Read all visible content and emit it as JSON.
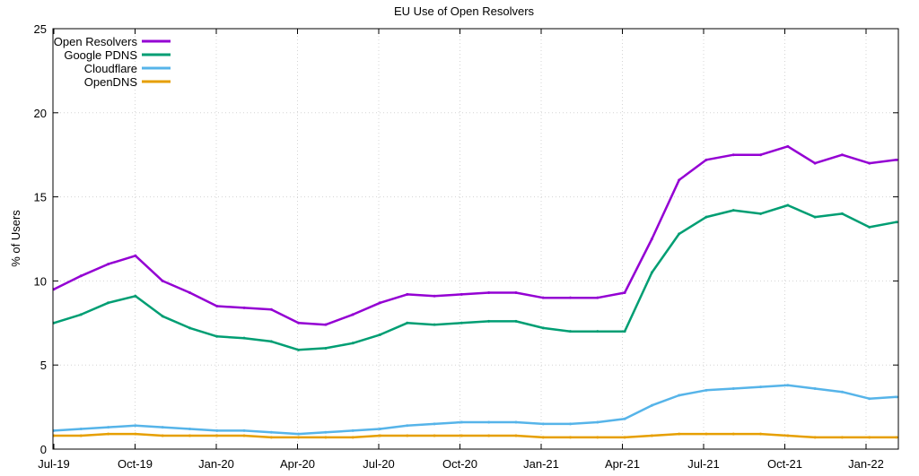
{
  "chart_data": {
    "type": "line",
    "title": "EU Use of Open Resolvers",
    "xlabel": "",
    "ylabel": "% of Users",
    "ylim": [
      0,
      25
    ],
    "yticks": [
      0,
      5,
      10,
      15,
      20,
      25
    ],
    "xticks": [
      "Jul-19",
      "Oct-19",
      "Jan-20",
      "Apr-20",
      "Jul-20",
      "Oct-20",
      "Jan-21",
      "Apr-21",
      "Jul-21",
      "Oct-21",
      "Jan-22"
    ],
    "grid": true,
    "legend_position": "top-left",
    "x": [
      "Jul-19",
      "Aug-19",
      "Sep-19",
      "Oct-19",
      "Nov-19",
      "Dec-19",
      "Jan-20",
      "Feb-20",
      "Mar-20",
      "Apr-20",
      "May-20",
      "Jun-20",
      "Jul-20",
      "Aug-20",
      "Sep-20",
      "Oct-20",
      "Nov-20",
      "Dec-20",
      "Jan-21",
      "Feb-21",
      "Mar-21",
      "Apr-21",
      "May-21",
      "Jun-21",
      "Jul-21",
      "Aug-21",
      "Sep-21",
      "Oct-21",
      "Nov-21",
      "Dec-21",
      "Jan-22",
      "Feb-22"
    ],
    "series": [
      {
        "name": "Open Resolvers",
        "color": "#9400d3",
        "values": [
          9.5,
          10.3,
          11.0,
          11.5,
          10.0,
          9.3,
          8.5,
          8.4,
          8.3,
          7.5,
          7.4,
          8.0,
          8.7,
          9.2,
          9.1,
          9.2,
          9.3,
          9.3,
          9.0,
          9.0,
          9.0,
          9.3,
          12.5,
          16.0,
          17.2,
          17.5,
          17.5,
          18.0,
          17.0,
          17.5,
          17.0,
          17.2
        ]
      },
      {
        "name": "Google PDNS",
        "color": "#009e73",
        "values": [
          7.5,
          8.0,
          8.7,
          9.1,
          7.9,
          7.2,
          6.7,
          6.6,
          6.4,
          5.9,
          6.0,
          6.3,
          6.8,
          7.5,
          7.4,
          7.5,
          7.6,
          7.6,
          7.2,
          7.0,
          7.0,
          7.0,
          10.5,
          12.8,
          13.8,
          14.2,
          14.0,
          14.5,
          13.8,
          14.0,
          13.2,
          13.5
        ]
      },
      {
        "name": "Cloudflare",
        "color": "#56b4e9",
        "values": [
          1.1,
          1.2,
          1.3,
          1.4,
          1.3,
          1.2,
          1.1,
          1.1,
          1.0,
          0.9,
          1.0,
          1.1,
          1.2,
          1.4,
          1.5,
          1.6,
          1.6,
          1.6,
          1.5,
          1.5,
          1.6,
          1.8,
          2.6,
          3.2,
          3.5,
          3.6,
          3.7,
          3.8,
          3.6,
          3.4,
          3.0,
          3.1
        ]
      },
      {
        "name": "OpenDNS",
        "color": "#e69f00",
        "values": [
          0.8,
          0.8,
          0.9,
          0.9,
          0.8,
          0.8,
          0.8,
          0.8,
          0.7,
          0.7,
          0.7,
          0.7,
          0.8,
          0.8,
          0.8,
          0.8,
          0.8,
          0.8,
          0.7,
          0.7,
          0.7,
          0.7,
          0.8,
          0.9,
          0.9,
          0.9,
          0.9,
          0.8,
          0.7,
          0.7,
          0.7,
          0.7
        ]
      }
    ]
  }
}
